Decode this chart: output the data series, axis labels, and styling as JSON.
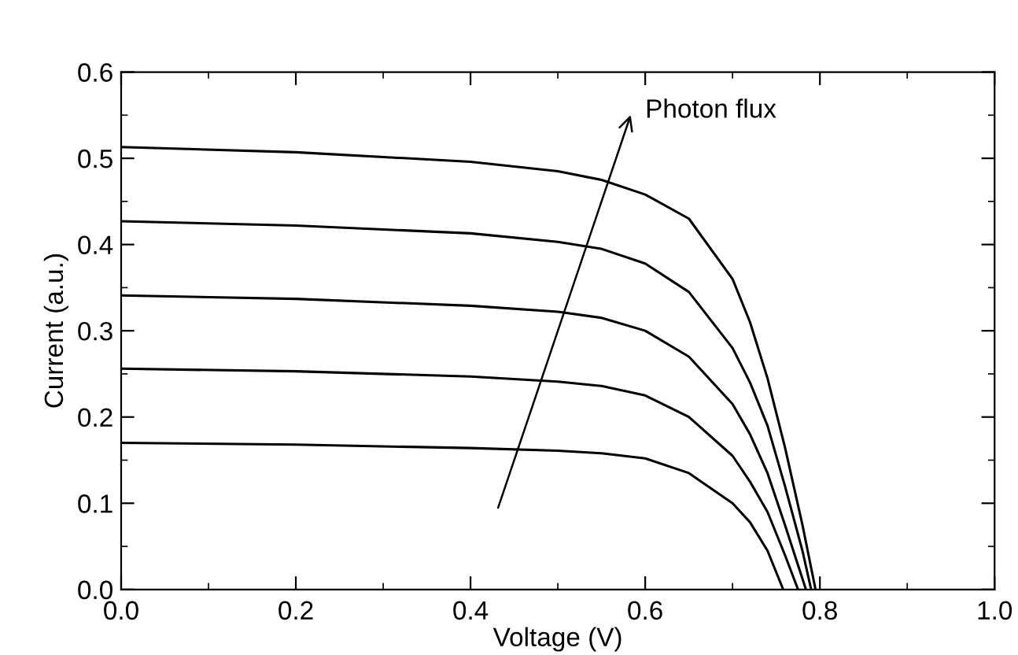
{
  "chart_data": {
    "type": "line",
    "xlabel": "Voltage (V)",
    "ylabel": "Current (a.u.)",
    "xlim": [
      0,
      1.0
    ],
    "xticks": [
      {
        "value": 0,
        "label": "0.0"
      },
      0.2,
      0.4,
      0.6,
      0.8,
      {
        "value": 1.0,
        "label": "1.0"
      }
    ],
    "ylim": [
      0,
      0.6
    ],
    "yticks": [
      {
        "value": 0,
        "label": "0.0"
      },
      0.1,
      0.2,
      0.3,
      0.4,
      0.5,
      0.6
    ],
    "grid": false,
    "legend": false,
    "marker": "none",
    "line_style": "solid",
    "annotations": [
      "Photon flux"
    ],
    "series": [
      {
        "color": "#000000",
        "x": [
          0,
          0.2,
          0.4,
          0.5,
          0.55,
          0.6,
          0.65,
          0.7,
          0.72,
          0.74,
          0.758
        ],
        "values": [
          0.17,
          0.168,
          0.164,
          0.161,
          0.158,
          0.152,
          0.135,
          0.1,
          0.078,
          0.045,
          0
        ]
      },
      {
        "color": "#000000",
        "x": [
          0,
          0.2,
          0.4,
          0.5,
          0.55,
          0.6,
          0.65,
          0.7,
          0.72,
          0.74,
          0.76,
          0.775
        ],
        "values": [
          0.256,
          0.253,
          0.247,
          0.241,
          0.236,
          0.225,
          0.2,
          0.155,
          0.125,
          0.09,
          0.04,
          0
        ]
      },
      {
        "color": "#000000",
        "x": [
          0,
          0.2,
          0.4,
          0.5,
          0.55,
          0.6,
          0.65,
          0.7,
          0.72,
          0.74,
          0.76,
          0.784
        ],
        "values": [
          0.341,
          0.337,
          0.329,
          0.322,
          0.315,
          0.3,
          0.27,
          0.215,
          0.18,
          0.135,
          0.075,
          0
        ]
      },
      {
        "color": "#000000",
        "x": [
          0,
          0.2,
          0.4,
          0.5,
          0.55,
          0.6,
          0.65,
          0.7,
          0.72,
          0.74,
          0.76,
          0.78,
          0.79
        ],
        "values": [
          0.427,
          0.422,
          0.413,
          0.403,
          0.395,
          0.378,
          0.345,
          0.28,
          0.24,
          0.19,
          0.12,
          0.045,
          0
        ]
      },
      {
        "color": "#000000",
        "x": [
          0,
          0.2,
          0.4,
          0.5,
          0.55,
          0.6,
          0.65,
          0.7,
          0.72,
          0.74,
          0.76,
          0.78,
          0.795
        ],
        "values": [
          0.513,
          0.507,
          0.496,
          0.485,
          0.475,
          0.458,
          0.43,
          0.36,
          0.31,
          0.245,
          0.165,
          0.075,
          0
        ]
      }
    ]
  }
}
